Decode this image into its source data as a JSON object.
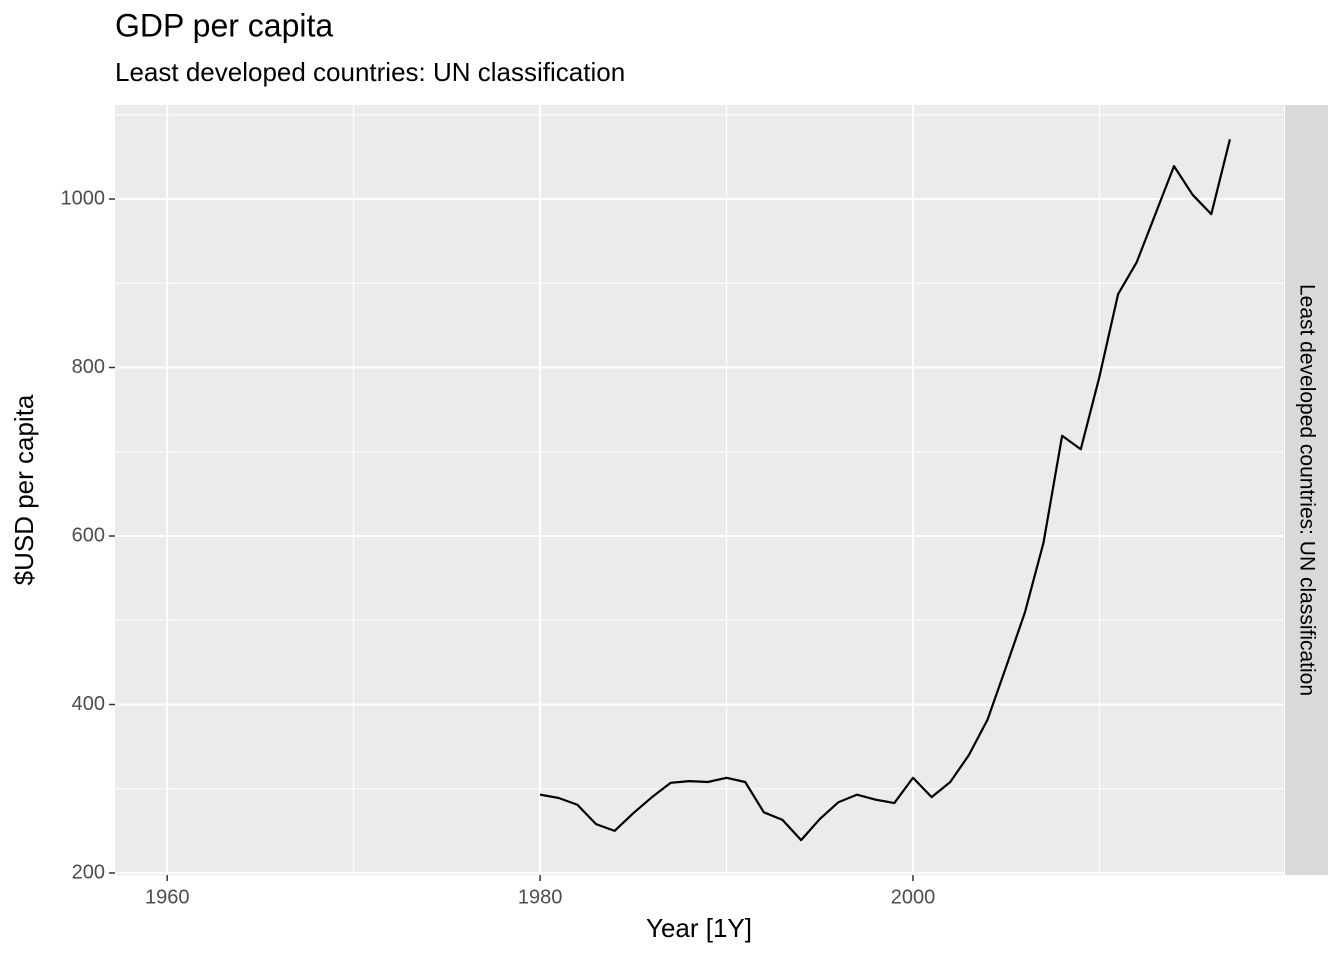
{
  "chart_data": {
    "type": "line",
    "title": "GDP per capita",
    "subtitle": "Least developed countries: UN classification",
    "facet_label": "Least developed countries: UN classification",
    "xlabel": "Year [1Y]",
    "ylabel": "$USD per capita",
    "x": [
      1980,
      1981,
      1982,
      1983,
      1984,
      1985,
      1986,
      1987,
      1988,
      1989,
      1990,
      1991,
      1992,
      1993,
      1994,
      1995,
      1996,
      1997,
      1998,
      1999,
      2000,
      2001,
      2002,
      2003,
      2004,
      2005,
      2006,
      2007,
      2008,
      2009,
      2010,
      2011,
      2012,
      2013,
      2014,
      2015,
      2016,
      2017
    ],
    "values": [
      293,
      289,
      281,
      258,
      250,
      271,
      290,
      307,
      309,
      308,
      313,
      308,
      272,
      263,
      239,
      264,
      284,
      293,
      287,
      283,
      313,
      290,
      308,
      340,
      382,
      445,
      509,
      592,
      719,
      703,
      789,
      887,
      925,
      982,
      1039,
      1005,
      982,
      1071
    ],
    "color": "#000000",
    "xlim": [
      1957.2,
      2019.9
    ],
    "xticks": [
      1960,
      1980,
      2000
    ],
    "ylim": [
      197.6,
      1111.6
    ],
    "yticks": [
      200,
      400,
      600,
      800,
      1000
    ],
    "grid": true
  }
}
